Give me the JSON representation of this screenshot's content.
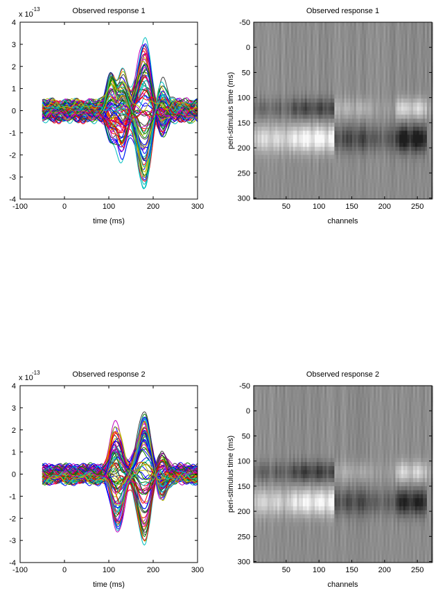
{
  "chart_data": [
    {
      "type": "line",
      "title": "Observed response 1",
      "xlabel": "time (ms)",
      "ylabel": "",
      "y_exponent_label": "x 10",
      "y_exponent": "-13",
      "xlim": [
        -100,
        300
      ],
      "ylim": [
        -4,
        4
      ],
      "xticks": [
        "-100",
        "0",
        "100",
        "200",
        "300"
      ],
      "yticks": [
        "4",
        "3",
        "2",
        "1",
        "0",
        "-1",
        "-2",
        "-3",
        "-4"
      ],
      "time_range": [
        -50,
        300
      ],
      "n_traces": 90,
      "components": [
        {
          "center_ms": 105,
          "max": 1.7,
          "min": -1.0
        },
        {
          "center_ms": 130,
          "max": 1.7,
          "min": -2.0
        },
        {
          "center_ms": 180,
          "max": 3.0,
          "min": -3.5
        }
      ],
      "baseline_noise": 0.45
    },
    {
      "type": "heatmap",
      "title": "Observed response 1",
      "xlabel": "channels",
      "ylabel": "peri-stimulus time (ms)",
      "xlim": [
        0.5,
        272
      ],
      "ylim": [
        -50,
        302
      ],
      "xticks": [
        "50",
        "100",
        "150",
        "200",
        "250"
      ],
      "yticks": [
        "-50",
        "0",
        "50",
        "100",
        "150",
        "200",
        "250",
        "300"
      ],
      "colormap": "gray",
      "channel_segments": [
        [
          1,
          60
        ],
        [
          60,
          122
        ],
        [
          122,
          180
        ],
        [
          180,
          215
        ],
        [
          215,
          262
        ],
        [
          262,
          272
        ]
      ],
      "m100_amplitudes": [
        -0.3,
        -0.55,
        0.3,
        0.1,
        0.6,
        0.2
      ],
      "m170_amplitudes": [
        0.6,
        0.9,
        -0.55,
        -0.4,
        -0.95,
        0.0
      ]
    },
    {
      "type": "line",
      "title": "Observed response 2",
      "xlabel": "time (ms)",
      "ylabel": "",
      "y_exponent_label": "x 10",
      "y_exponent": "-13",
      "xlim": [
        -100,
        300
      ],
      "ylim": [
        -4,
        4
      ],
      "xticks": [
        "-100",
        "0",
        "100",
        "200",
        "300"
      ],
      "yticks": [
        "4",
        "3",
        "2",
        "1",
        "0",
        "-1",
        "-2",
        "-3",
        "-4"
      ],
      "time_range": [
        -50,
        300
      ],
      "n_traces": 90,
      "components": [
        {
          "center_ms": 110,
          "max": 1.6,
          "min": -1.2
        },
        {
          "center_ms": 125,
          "max": 1.6,
          "min": -2.4
        },
        {
          "center_ms": 180,
          "max": 2.8,
          "min": -2.8
        }
      ],
      "baseline_noise": 0.4
    },
    {
      "type": "heatmap",
      "title": "Observed response 2",
      "xlabel": "channels",
      "ylabel": "peri-stimulus time (ms)",
      "xlim": [
        0.5,
        272
      ],
      "ylim": [
        -50,
        302
      ],
      "xticks": [
        "50",
        "100",
        "150",
        "200",
        "250"
      ],
      "yticks": [
        "-50",
        "0",
        "50",
        "100",
        "150",
        "200",
        "250",
        "300"
      ],
      "colormap": "gray",
      "channel_segments": [
        [
          1,
          60
        ],
        [
          60,
          122
        ],
        [
          122,
          180
        ],
        [
          180,
          215
        ],
        [
          215,
          262
        ],
        [
          262,
          272
        ]
      ],
      "m100_amplitudes": [
        -0.35,
        -0.6,
        0.25,
        0.1,
        0.55,
        0.2
      ],
      "m170_amplitudes": [
        0.55,
        0.85,
        -0.5,
        -0.35,
        -0.85,
        0.0
      ]
    }
  ],
  "colors": {
    "trace_cycle": [
      "#0000ff",
      "#008000",
      "#ff0000",
      "#00bfbf",
      "#bf00bf",
      "#bfbf00",
      "#404040"
    ],
    "axes": "#000000",
    "background": "#ffffff"
  }
}
